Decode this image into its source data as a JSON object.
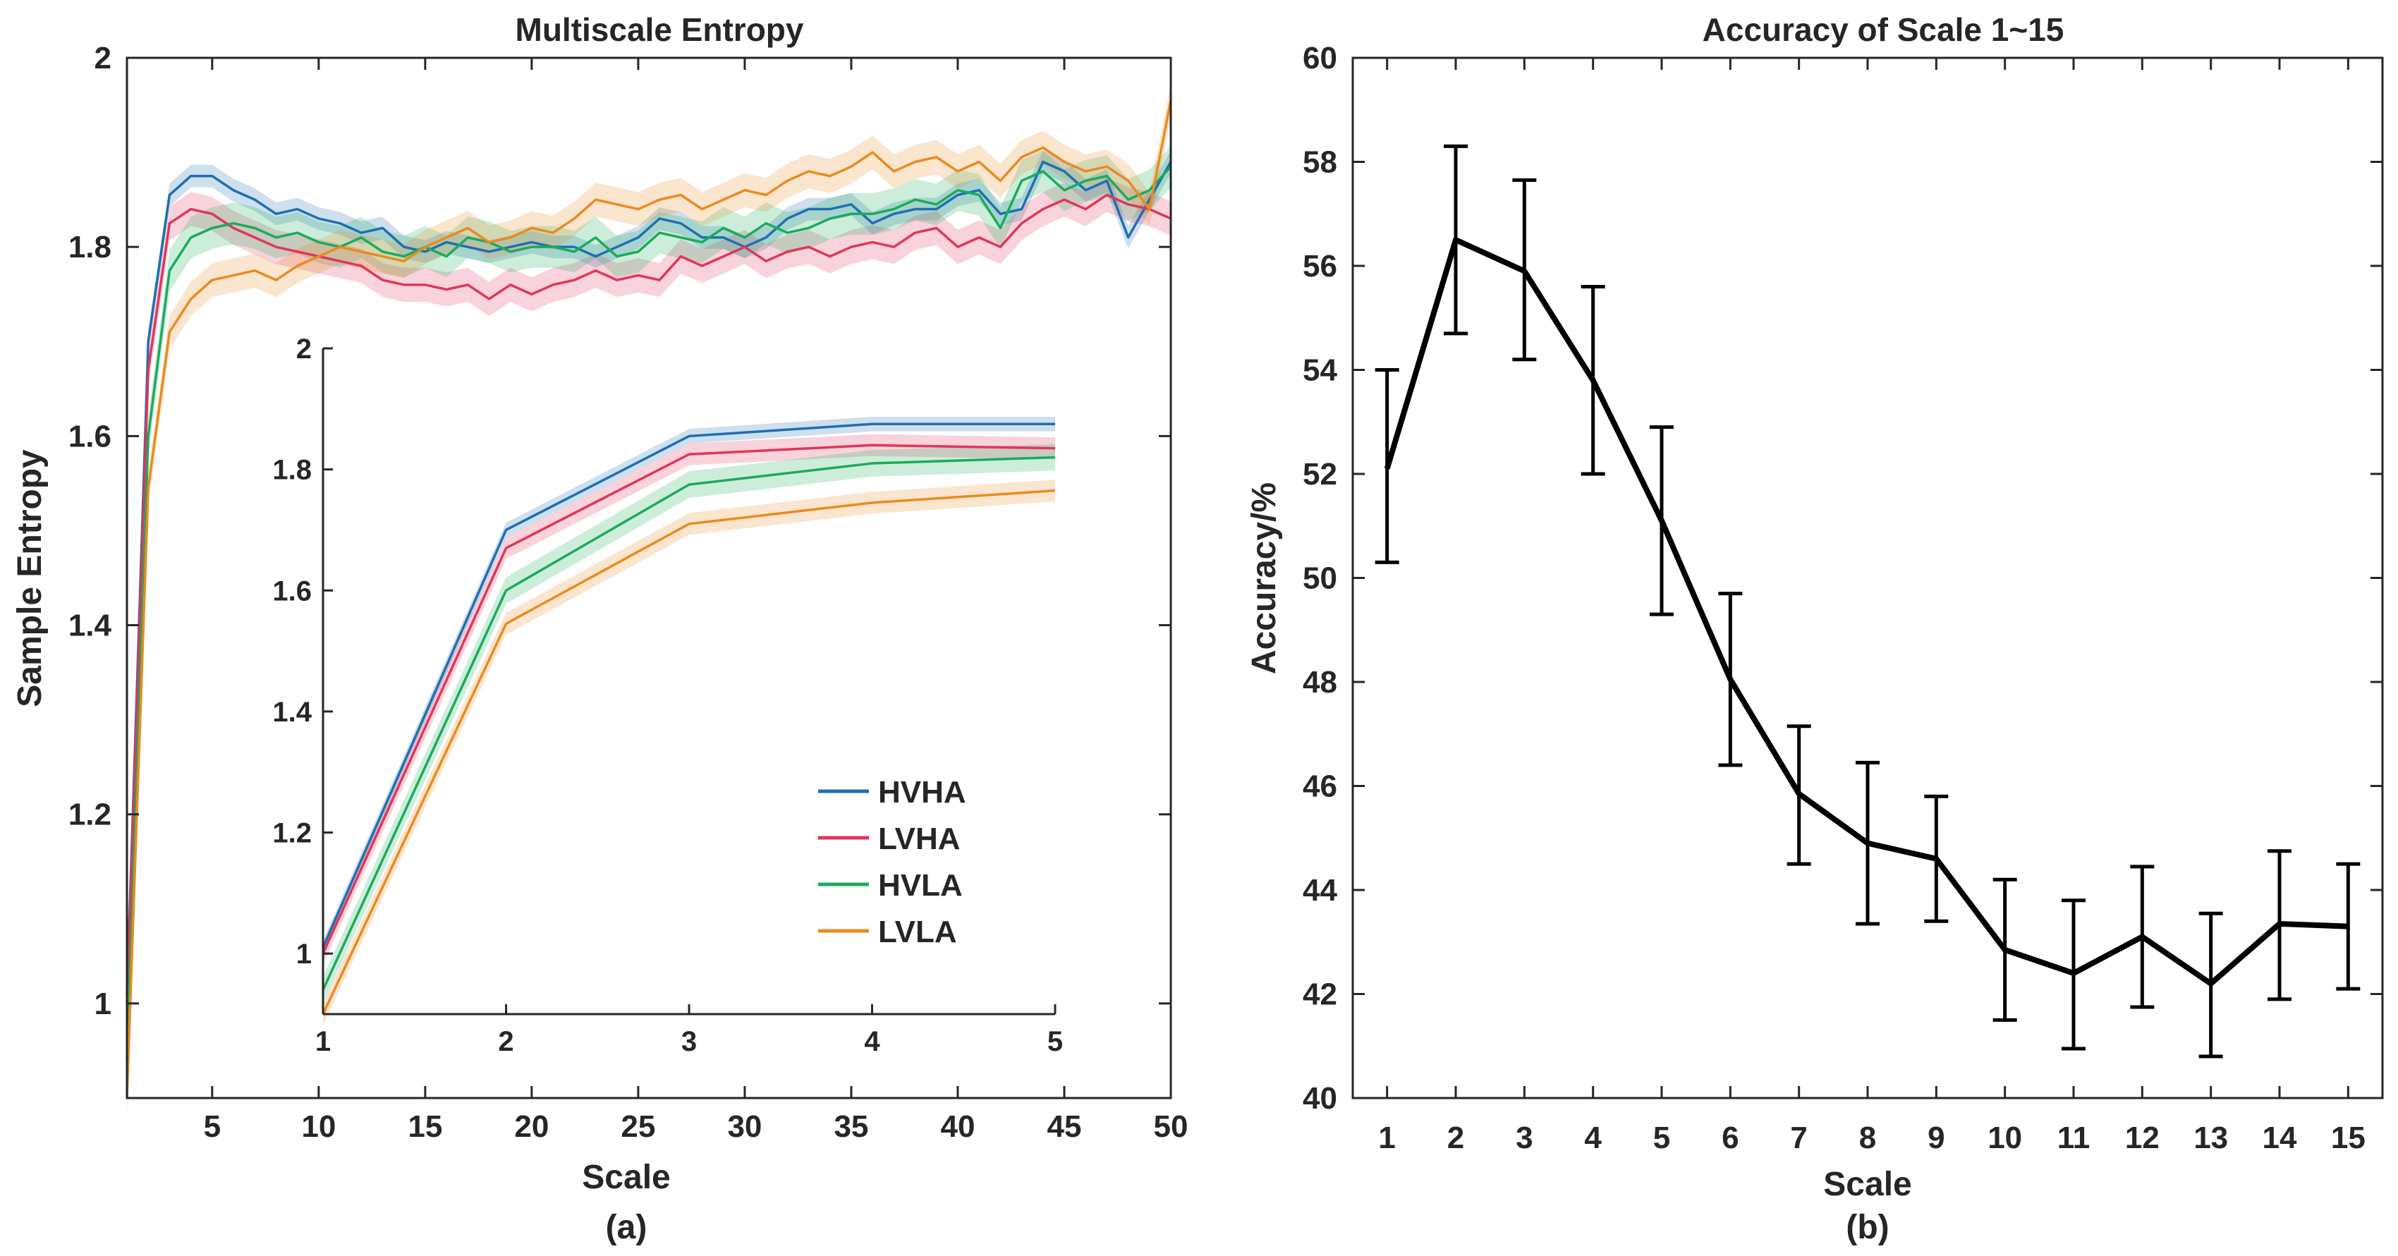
{
  "figure": {
    "caption_a": "(a)",
    "caption_b": "(b)"
  },
  "chart_data": [
    {
      "type": "line",
      "title": "Multiscale Entropy",
      "xlabel": "Scale",
      "ylabel": "Sample Entropy",
      "xlim": [
        1,
        50
      ],
      "ylim": [
        0.9,
        2.0
      ],
      "xticks": [
        "5",
        "10",
        "15",
        "20",
        "25",
        "30",
        "35",
        "40",
        "45",
        "50"
      ],
      "yticks": [
        "1",
        "1.2",
        "1.4",
        "1.6",
        "1.8",
        "2"
      ],
      "legend": "inset bottom-right",
      "series": [
        {
          "name": "HVHA",
          "color": "#1f6fb2",
          "band": 0.012,
          "values": [
            1.01,
            1.7,
            1.855,
            1.875,
            1.875,
            1.86,
            1.85,
            1.835,
            1.84,
            1.83,
            1.825,
            1.815,
            1.82,
            1.8,
            1.795,
            1.805,
            1.8,
            1.795,
            1.8,
            1.805,
            1.8,
            1.8,
            1.79,
            1.8,
            1.81,
            1.83,
            1.825,
            1.81,
            1.81,
            1.8,
            1.81,
            1.83,
            1.84,
            1.84,
            1.845,
            1.825,
            1.835,
            1.84,
            1.84,
            1.855,
            1.86,
            1.835,
            1.84,
            1.89,
            1.88,
            1.86,
            1.87,
            1.81,
            1.85,
            1.89
          ]
        },
        {
          "name": "LVHA",
          "color": "#e0365a",
          "band": 0.018,
          "values": [
            1.0,
            1.67,
            1.825,
            1.84,
            1.835,
            1.82,
            1.81,
            1.8,
            1.795,
            1.79,
            1.785,
            1.78,
            1.765,
            1.76,
            1.76,
            1.755,
            1.76,
            1.745,
            1.76,
            1.75,
            1.76,
            1.765,
            1.775,
            1.765,
            1.77,
            1.765,
            1.79,
            1.78,
            1.79,
            1.8,
            1.785,
            1.795,
            1.8,
            1.79,
            1.8,
            1.805,
            1.8,
            1.815,
            1.82,
            1.8,
            1.81,
            1.8,
            1.825,
            1.84,
            1.85,
            1.84,
            1.855,
            1.845,
            1.84,
            1.83
          ]
        },
        {
          "name": "HVLA",
          "color": "#1aab5c",
          "band": 0.022,
          "values": [
            0.94,
            1.6,
            1.775,
            1.81,
            1.82,
            1.825,
            1.82,
            1.81,
            1.815,
            1.805,
            1.8,
            1.81,
            1.795,
            1.79,
            1.8,
            1.79,
            1.81,
            1.805,
            1.795,
            1.8,
            1.8,
            1.795,
            1.81,
            1.79,
            1.795,
            1.815,
            1.81,
            1.805,
            1.82,
            1.81,
            1.825,
            1.815,
            1.82,
            1.83,
            1.835,
            1.835,
            1.84,
            1.85,
            1.845,
            1.86,
            1.855,
            1.82,
            1.87,
            1.88,
            1.86,
            1.87,
            1.875,
            1.85,
            1.86,
            1.885
          ]
        },
        {
          "name": "LVLA",
          "color": "#ea8a20",
          "band": 0.018,
          "values": [
            0.9,
            1.545,
            1.71,
            1.745,
            1.765,
            1.77,
            1.775,
            1.765,
            1.78,
            1.79,
            1.8,
            1.795,
            1.79,
            1.785,
            1.8,
            1.81,
            1.82,
            1.805,
            1.81,
            1.82,
            1.815,
            1.83,
            1.85,
            1.845,
            1.84,
            1.85,
            1.855,
            1.84,
            1.85,
            1.86,
            1.855,
            1.87,
            1.88,
            1.875,
            1.885,
            1.9,
            1.88,
            1.89,
            1.895,
            1.88,
            1.89,
            1.87,
            1.895,
            1.905,
            1.89,
            1.88,
            1.885,
            1.87,
            1.84,
            1.955
          ]
        }
      ],
      "inset": {
        "xlim": [
          1,
          5
        ],
        "ylim": [
          0.9,
          2.0
        ],
        "xticks": [
          "1",
          "2",
          "3",
          "4",
          "5"
        ],
        "yticks": [
          "1",
          "1.2",
          "1.4",
          "1.6",
          "1.8",
          "2"
        ]
      }
    },
    {
      "type": "line",
      "title": "Accuracy of Scale 1~15",
      "xlabel": "Scale",
      "ylabel": "Accuracy/%",
      "xlim": [
        0.5,
        15.5
      ],
      "ylim": [
        40,
        60
      ],
      "xticks": [
        "1",
        "2",
        "3",
        "4",
        "5",
        "6",
        "7",
        "8",
        "9",
        "10",
        "11",
        "12",
        "13",
        "14",
        "15"
      ],
      "yticks": [
        "40",
        "42",
        "44",
        "46",
        "48",
        "50",
        "52",
        "54",
        "56",
        "58",
        "60"
      ],
      "x": [
        1,
        2,
        3,
        4,
        5,
        6,
        7,
        8,
        9,
        10,
        11,
        12,
        13,
        14,
        15
      ],
      "values": [
        52.1,
        56.5,
        55.9,
        53.8,
        51.1,
        48.05,
        45.85,
        44.9,
        44.6,
        42.85,
        42.4,
        43.1,
        42.2,
        43.35,
        43.3
      ],
      "err_low": [
        50.3,
        54.7,
        54.2,
        52.0,
        49.3,
        46.4,
        44.5,
        43.35,
        43.4,
        41.5,
        40.95,
        41.75,
        40.8,
        41.9,
        42.1
      ],
      "err_high": [
        54.0,
        58.3,
        57.65,
        55.6,
        52.9,
        49.7,
        47.15,
        46.45,
        45.8,
        44.2,
        43.8,
        44.45,
        43.55,
        44.75,
        44.5
      ],
      "color": "#000000"
    }
  ]
}
